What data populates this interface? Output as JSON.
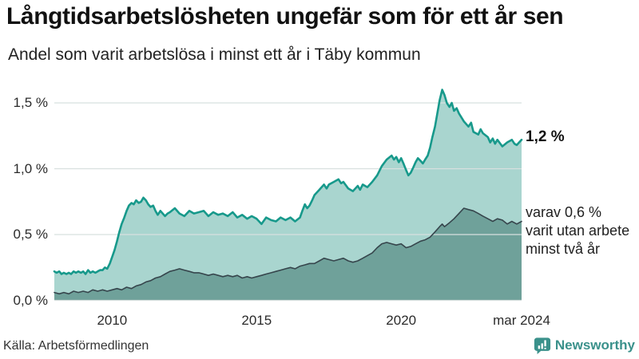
{
  "header": {
    "title": "Långtidsarbetslösheten ungefär som för ett år sen",
    "subtitle": "Andel som varit arbetslösa i minst ett år i Täby kommun"
  },
  "footer": {
    "source": "Källa: Arbetsförmedlingen",
    "brand": "Newsworthy"
  },
  "colors": {
    "series_one_year_line": "#17998b",
    "series_one_year_fill": "#a9d5cf",
    "series_two_year_line": "#36454c",
    "series_two_year_fill": "#6fa19a",
    "gridline": "#d8e0df",
    "brand_teal": "#3a918b"
  },
  "chart_data": {
    "type": "area",
    "title": "Långtidsarbetslösheten ungefär som för ett år sen",
    "subtitle": "Andel som varit arbetslösa i minst ett år i Täby kommun",
    "unit": "%",
    "grid": true,
    "x_range": [
      2008.0,
      2024.1667
    ],
    "ylim": [
      0,
      1.676
    ],
    "y_ticks": [
      {
        "value": 0.0,
        "label": "0,0 %"
      },
      {
        "value": 0.5,
        "label": "0,5 %"
      },
      {
        "value": 1.0,
        "label": "1,0 %"
      },
      {
        "value": 1.5,
        "label": "1,5 %"
      }
    ],
    "x_ticks": [
      {
        "value": 2010.0,
        "label": "2010"
      },
      {
        "value": 2015.0,
        "label": "2015"
      },
      {
        "value": 2020.0,
        "label": "2020"
      },
      {
        "value": 2024.1667,
        "label": "mar 2024"
      }
    ],
    "annotations": [
      {
        "text": "1,2 %",
        "bold": true
      },
      {
        "text": "varav 0,6 %\nvarit utan arbete\nminst två år",
        "bold": false
      }
    ],
    "series": [
      {
        "name": "Arbetslösa minst ett år",
        "last_value_label": "1,2 %",
        "line_color": "#17998b",
        "fill_color": "#a9d5cf",
        "points": [
          [
            2008.0,
            0.22
          ],
          [
            2008.08,
            0.21
          ],
          [
            2008.17,
            0.22
          ],
          [
            2008.25,
            0.2
          ],
          [
            2008.33,
            0.21
          ],
          [
            2008.42,
            0.2
          ],
          [
            2008.5,
            0.21
          ],
          [
            2008.58,
            0.2
          ],
          [
            2008.67,
            0.22
          ],
          [
            2008.75,
            0.21
          ],
          [
            2008.83,
            0.22
          ],
          [
            2008.92,
            0.21
          ],
          [
            2009.0,
            0.22
          ],
          [
            2009.08,
            0.2
          ],
          [
            2009.17,
            0.23
          ],
          [
            2009.25,
            0.21
          ],
          [
            2009.33,
            0.22
          ],
          [
            2009.42,
            0.21
          ],
          [
            2009.5,
            0.22
          ],
          [
            2009.58,
            0.23
          ],
          [
            2009.67,
            0.23
          ],
          [
            2009.75,
            0.25
          ],
          [
            2009.83,
            0.24
          ],
          [
            2009.92,
            0.28
          ],
          [
            2010.0,
            0.33
          ],
          [
            2010.08,
            0.38
          ],
          [
            2010.17,
            0.45
          ],
          [
            2010.25,
            0.52
          ],
          [
            2010.33,
            0.58
          ],
          [
            2010.42,
            0.63
          ],
          [
            2010.5,
            0.68
          ],
          [
            2010.58,
            0.72
          ],
          [
            2010.67,
            0.74
          ],
          [
            2010.75,
            0.73
          ],
          [
            2010.83,
            0.76
          ],
          [
            2010.92,
            0.74
          ],
          [
            2011.0,
            0.75
          ],
          [
            2011.08,
            0.78
          ],
          [
            2011.17,
            0.76
          ],
          [
            2011.25,
            0.73
          ],
          [
            2011.33,
            0.71
          ],
          [
            2011.42,
            0.72
          ],
          [
            2011.5,
            0.68
          ],
          [
            2011.58,
            0.65
          ],
          [
            2011.67,
            0.68
          ],
          [
            2011.75,
            0.66
          ],
          [
            2011.83,
            0.64
          ],
          [
            2011.92,
            0.66
          ],
          [
            2012.0,
            0.67
          ],
          [
            2012.17,
            0.7
          ],
          [
            2012.33,
            0.66
          ],
          [
            2012.5,
            0.64
          ],
          [
            2012.67,
            0.68
          ],
          [
            2012.83,
            0.66
          ],
          [
            2013.0,
            0.67
          ],
          [
            2013.17,
            0.68
          ],
          [
            2013.33,
            0.64
          ],
          [
            2013.5,
            0.67
          ],
          [
            2013.67,
            0.65
          ],
          [
            2013.83,
            0.66
          ],
          [
            2014.0,
            0.64
          ],
          [
            2014.17,
            0.67
          ],
          [
            2014.33,
            0.63
          ],
          [
            2014.5,
            0.65
          ],
          [
            2014.67,
            0.62
          ],
          [
            2014.83,
            0.64
          ],
          [
            2015.0,
            0.62
          ],
          [
            2015.17,
            0.58
          ],
          [
            2015.33,
            0.63
          ],
          [
            2015.5,
            0.61
          ],
          [
            2015.67,
            0.6
          ],
          [
            2015.83,
            0.63
          ],
          [
            2016.0,
            0.61
          ],
          [
            2016.17,
            0.63
          ],
          [
            2016.33,
            0.6
          ],
          [
            2016.5,
            0.63
          ],
          [
            2016.58,
            0.68
          ],
          [
            2016.67,
            0.73
          ],
          [
            2016.75,
            0.7
          ],
          [
            2016.83,
            0.72
          ],
          [
            2016.92,
            0.76
          ],
          [
            2017.0,
            0.8
          ],
          [
            2017.17,
            0.84
          ],
          [
            2017.33,
            0.88
          ],
          [
            2017.42,
            0.85
          ],
          [
            2017.5,
            0.88
          ],
          [
            2017.67,
            0.9
          ],
          [
            2017.83,
            0.92
          ],
          [
            2017.92,
            0.89
          ],
          [
            2018.0,
            0.9
          ],
          [
            2018.17,
            0.85
          ],
          [
            2018.33,
            0.83
          ],
          [
            2018.5,
            0.87
          ],
          [
            2018.58,
            0.84
          ],
          [
            2018.67,
            0.88
          ],
          [
            2018.83,
            0.86
          ],
          [
            2019.0,
            0.9
          ],
          [
            2019.17,
            0.95
          ],
          [
            2019.33,
            1.02
          ],
          [
            2019.5,
            1.07
          ],
          [
            2019.67,
            1.1
          ],
          [
            2019.75,
            1.07
          ],
          [
            2019.83,
            1.09
          ],
          [
            2019.92,
            1.05
          ],
          [
            2020.0,
            1.08
          ],
          [
            2020.08,
            1.04
          ],
          [
            2020.17,
            0.99
          ],
          [
            2020.25,
            0.95
          ],
          [
            2020.33,
            0.97
          ],
          [
            2020.42,
            1.01
          ],
          [
            2020.5,
            1.05
          ],
          [
            2020.58,
            1.08
          ],
          [
            2020.67,
            1.06
          ],
          [
            2020.75,
            1.04
          ],
          [
            2020.83,
            1.07
          ],
          [
            2020.92,
            1.1
          ],
          [
            2021.0,
            1.16
          ],
          [
            2021.08,
            1.24
          ],
          [
            2021.17,
            1.32
          ],
          [
            2021.25,
            1.42
          ],
          [
            2021.33,
            1.52
          ],
          [
            2021.42,
            1.6
          ],
          [
            2021.5,
            1.56
          ],
          [
            2021.58,
            1.5
          ],
          [
            2021.67,
            1.47
          ],
          [
            2021.75,
            1.5
          ],
          [
            2021.83,
            1.44
          ],
          [
            2021.92,
            1.46
          ],
          [
            2022.0,
            1.42
          ],
          [
            2022.17,
            1.36
          ],
          [
            2022.33,
            1.32
          ],
          [
            2022.42,
            1.35
          ],
          [
            2022.5,
            1.28
          ],
          [
            2022.67,
            1.26
          ],
          [
            2022.75,
            1.3
          ],
          [
            2022.83,
            1.27
          ],
          [
            2023.0,
            1.24
          ],
          [
            2023.08,
            1.2
          ],
          [
            2023.17,
            1.23
          ],
          [
            2023.25,
            1.19
          ],
          [
            2023.33,
            1.22
          ],
          [
            2023.5,
            1.17
          ],
          [
            2023.67,
            1.2
          ],
          [
            2023.83,
            1.22
          ],
          [
            2023.92,
            1.19
          ],
          [
            2024.0,
            1.18
          ],
          [
            2024.08,
            1.2
          ],
          [
            2024.1667,
            1.22
          ]
        ]
      },
      {
        "name": "Arbetslösa minst två år",
        "last_value_label": "0,6 %",
        "line_color": "#36454c",
        "fill_color": "#6fa19a",
        "points": [
          [
            2008.0,
            0.06
          ],
          [
            2008.17,
            0.05
          ],
          [
            2008.33,
            0.06
          ],
          [
            2008.5,
            0.05
          ],
          [
            2008.67,
            0.07
          ],
          [
            2008.83,
            0.06
          ],
          [
            2009.0,
            0.07
          ],
          [
            2009.17,
            0.06
          ],
          [
            2009.33,
            0.08
          ],
          [
            2009.5,
            0.07
          ],
          [
            2009.67,
            0.08
          ],
          [
            2009.83,
            0.07
          ],
          [
            2010.0,
            0.08
          ],
          [
            2010.17,
            0.09
          ],
          [
            2010.33,
            0.08
          ],
          [
            2010.5,
            0.1
          ],
          [
            2010.67,
            0.09
          ],
          [
            2010.83,
            0.11
          ],
          [
            2011.0,
            0.12
          ],
          [
            2011.17,
            0.14
          ],
          [
            2011.33,
            0.15
          ],
          [
            2011.5,
            0.17
          ],
          [
            2011.67,
            0.18
          ],
          [
            2011.83,
            0.2
          ],
          [
            2012.0,
            0.22
          ],
          [
            2012.17,
            0.23
          ],
          [
            2012.33,
            0.24
          ],
          [
            2012.5,
            0.23
          ],
          [
            2012.67,
            0.22
          ],
          [
            2012.83,
            0.21
          ],
          [
            2013.0,
            0.21
          ],
          [
            2013.17,
            0.2
          ],
          [
            2013.33,
            0.19
          ],
          [
            2013.5,
            0.2
          ],
          [
            2013.67,
            0.19
          ],
          [
            2013.83,
            0.18
          ],
          [
            2014.0,
            0.19
          ],
          [
            2014.17,
            0.18
          ],
          [
            2014.33,
            0.19
          ],
          [
            2014.5,
            0.17
          ],
          [
            2014.67,
            0.18
          ],
          [
            2014.83,
            0.17
          ],
          [
            2015.0,
            0.18
          ],
          [
            2015.17,
            0.19
          ],
          [
            2015.33,
            0.2
          ],
          [
            2015.5,
            0.21
          ],
          [
            2015.67,
            0.22
          ],
          [
            2015.83,
            0.23
          ],
          [
            2016.0,
            0.24
          ],
          [
            2016.17,
            0.25
          ],
          [
            2016.33,
            0.24
          ],
          [
            2016.5,
            0.26
          ],
          [
            2016.67,
            0.27
          ],
          [
            2016.83,
            0.28
          ],
          [
            2017.0,
            0.28
          ],
          [
            2017.17,
            0.3
          ],
          [
            2017.33,
            0.32
          ],
          [
            2017.5,
            0.31
          ],
          [
            2017.67,
            0.3
          ],
          [
            2017.83,
            0.31
          ],
          [
            2018.0,
            0.32
          ],
          [
            2018.17,
            0.3
          ],
          [
            2018.33,
            0.29
          ],
          [
            2018.5,
            0.3
          ],
          [
            2018.67,
            0.32
          ],
          [
            2018.83,
            0.34
          ],
          [
            2019.0,
            0.36
          ],
          [
            2019.17,
            0.4
          ],
          [
            2019.33,
            0.43
          ],
          [
            2019.5,
            0.44
          ],
          [
            2019.67,
            0.43
          ],
          [
            2019.83,
            0.42
          ],
          [
            2020.0,
            0.43
          ],
          [
            2020.17,
            0.4
          ],
          [
            2020.33,
            0.41
          ],
          [
            2020.5,
            0.43
          ],
          [
            2020.67,
            0.45
          ],
          [
            2020.83,
            0.46
          ],
          [
            2021.0,
            0.48
          ],
          [
            2021.17,
            0.52
          ],
          [
            2021.33,
            0.56
          ],
          [
            2021.42,
            0.58
          ],
          [
            2021.5,
            0.56
          ],
          [
            2021.67,
            0.59
          ],
          [
            2021.83,
            0.62
          ],
          [
            2022.0,
            0.66
          ],
          [
            2022.17,
            0.7
          ],
          [
            2022.33,
            0.69
          ],
          [
            2022.5,
            0.68
          ],
          [
            2022.67,
            0.66
          ],
          [
            2022.83,
            0.64
          ],
          [
            2023.0,
            0.62
          ],
          [
            2023.17,
            0.6
          ],
          [
            2023.33,
            0.62
          ],
          [
            2023.5,
            0.61
          ],
          [
            2023.67,
            0.58
          ],
          [
            2023.83,
            0.6
          ],
          [
            2024.0,
            0.58
          ],
          [
            2024.08,
            0.59
          ],
          [
            2024.1667,
            0.6
          ]
        ]
      }
    ]
  }
}
